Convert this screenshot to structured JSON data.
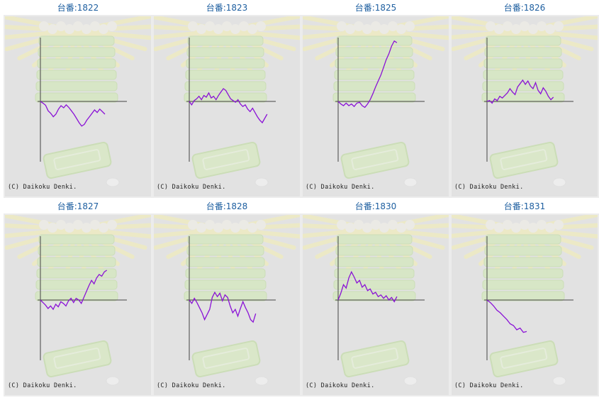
{
  "machine_label": "台番:",
  "copyright": "(C) Daikoku Denki.",
  "colors": {
    "title": "#1e5fa0",
    "line": "#8a12d6",
    "axis": "#444444",
    "panel_bg": "#e2e2e2"
  },
  "chart_data": [
    {
      "type": "line",
      "title": "台番:1822",
      "machine": "1822",
      "values": [
        0,
        -4,
        -9,
        -22,
        -28,
        -36,
        -30,
        -18,
        -10,
        -15,
        -8,
        -14,
        -22,
        -30,
        -40,
        -50,
        -58,
        -54,
        -44,
        -36,
        -28,
        -20,
        -26,
        -18,
        -24,
        -30
      ]
    },
    {
      "type": "line",
      "title": "台番:1823",
      "machine": "1823",
      "values": [
        0,
        -8,
        2,
        6,
        12,
        4,
        14,
        10,
        20,
        8,
        12,
        4,
        14,
        22,
        30,
        26,
        16,
        6,
        2,
        -2,
        4,
        -6,
        -12,
        -8,
        -18,
        -24,
        -16,
        -26,
        -36,
        -44,
        -50,
        -40,
        -30
      ]
    },
    {
      "type": "line",
      "title": "台番:1825",
      "machine": "1825",
      "values": [
        0,
        -6,
        -10,
        -4,
        -10,
        -6,
        -12,
        -4,
        -2,
        -10,
        -14,
        -6,
        4,
        18,
        34,
        48,
        62,
        80,
        98,
        112,
        130,
        142,
        138
      ]
    },
    {
      "type": "line",
      "title": "台番:1826",
      "machine": "1826",
      "values": [
        0,
        2,
        -4,
        6,
        2,
        12,
        8,
        14,
        20,
        30,
        22,
        16,
        34,
        42,
        50,
        40,
        48,
        36,
        30,
        44,
        26,
        18,
        32,
        24,
        12,
        4,
        10
      ]
    },
    {
      "type": "line",
      "title": "台番:1827",
      "machine": "1827",
      "values": [
        0,
        -6,
        -12,
        -20,
        -14,
        -22,
        -10,
        -16,
        -4,
        -8,
        -14,
        -2,
        4,
        -6,
        4,
        0,
        -8,
        6,
        20,
        34,
        46,
        38,
        52,
        60,
        56,
        66,
        70
      ]
    },
    {
      "type": "line",
      "title": "台番:1828",
      "machine": "1828",
      "values": [
        0,
        -8,
        4,
        -6,
        -18,
        -30,
        -46,
        -34,
        -22,
        6,
        18,
        8,
        16,
        -2,
        12,
        6,
        -14,
        -30,
        -22,
        -38,
        -20,
        -4,
        -18,
        -30,
        -46,
        -52,
        -32
      ]
    },
    {
      "type": "line",
      "title": "台番:1830",
      "machine": "1830",
      "values": [
        0,
        16,
        36,
        28,
        52,
        66,
        54,
        40,
        46,
        30,
        36,
        22,
        26,
        14,
        18,
        8,
        12,
        4,
        10,
        0,
        6,
        -4,
        8
      ]
    },
    {
      "type": "line",
      "title": "台番:1831",
      "machine": "1831",
      "values": [
        0,
        -6,
        -14,
        -24,
        -30,
        -38,
        -46,
        -56,
        -60,
        -70,
        -66,
        -76,
        -74
      ]
    }
  ]
}
